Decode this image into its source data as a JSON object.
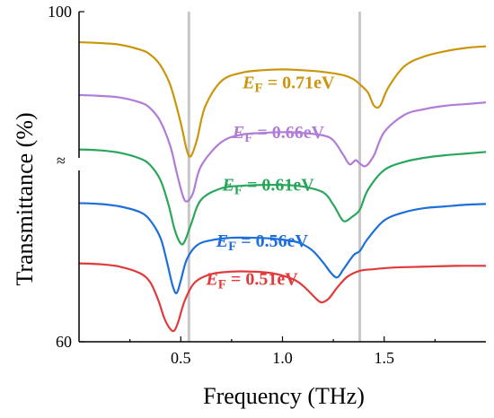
{
  "chart_data": {
    "type": "line",
    "xlabel": "Frequency (THz)",
    "ylabel": "Transmittance (%)",
    "xlim": [
      0.0,
      2.0
    ],
    "ylim": [
      60,
      100
    ],
    "x_ticks": [
      0.5,
      1.0,
      1.5
    ],
    "x_tick_labels": [
      "0.5",
      "1.0",
      "1.5"
    ],
    "y_tick_labels": [
      {
        "value": 100,
        "label": "100"
      },
      {
        "value": 60,
        "label": "60"
      }
    ],
    "axis_break_symbol": "≈",
    "reference_lines_x": [
      0.54,
      1.38
    ],
    "reference_line_color": "#c8c8c8",
    "series": [
      {
        "name": "E_F = 0.71eV",
        "label_parts": {
          "italic": "E",
          "sub": "F",
          "rest": " = 0.71eV"
        },
        "color": "#c9960c",
        "x": [
          0.0,
          0.1,
          0.2,
          0.3,
          0.35,
          0.4,
          0.45,
          0.5,
          0.53,
          0.55,
          0.58,
          0.62,
          0.7,
          0.8,
          0.9,
          1.0,
          1.1,
          1.2,
          1.3,
          1.35,
          1.38,
          1.42,
          1.45,
          1.48,
          1.52,
          1.6,
          1.7,
          1.8,
          1.9,
          2.0
        ],
        "y": [
          96.3,
          96.2,
          96.0,
          95.4,
          94.8,
          93.5,
          91.0,
          86.5,
          83.2,
          82.5,
          84.5,
          88.5,
          91.6,
          92.6,
          92.9,
          93.0,
          92.9,
          92.7,
          92.3,
          91.8,
          91.2,
          90.2,
          88.6,
          88.6,
          90.8,
          93.4,
          94.6,
          95.2,
          95.6,
          95.8
        ]
      },
      {
        "name": "E_F = 0.66eV",
        "label_parts": {
          "italic": "E",
          "sub": "F",
          "rest": " = 0.66eV"
        },
        "color": "#b07cd8",
        "x": [
          0.0,
          0.1,
          0.2,
          0.3,
          0.35,
          0.4,
          0.45,
          0.48,
          0.51,
          0.53,
          0.56,
          0.6,
          0.7,
          0.8,
          0.9,
          1.0,
          1.1,
          1.2,
          1.25,
          1.3,
          1.33,
          1.36,
          1.38,
          1.41,
          1.45,
          1.5,
          1.6,
          1.7,
          1.8,
          1.9,
          2.0
        ],
        "y": [
          89.9,
          89.8,
          89.6,
          89.0,
          88.3,
          86.7,
          83.6,
          80.5,
          77.7,
          77.0,
          78.0,
          81.3,
          84.2,
          85.1,
          85.3,
          85.4,
          85.3,
          85.0,
          84.4,
          82.6,
          81.5,
          82.0,
          81.6,
          81.3,
          82.6,
          85.4,
          87.5,
          88.2,
          88.6,
          88.8,
          89.0
        ]
      },
      {
        "name": "E_F = 0.61eV",
        "label_parts": {
          "italic": "E",
          "sub": "F",
          "rest": " = 0.61eV"
        },
        "color": "#2aa65c",
        "x": [
          0.0,
          0.1,
          0.2,
          0.3,
          0.35,
          0.4,
          0.44,
          0.47,
          0.5,
          0.52,
          0.55,
          0.6,
          0.7,
          0.8,
          0.9,
          1.0,
          1.1,
          1.2,
          1.25,
          1.29,
          1.31,
          1.34,
          1.38,
          1.42,
          1.5,
          1.6,
          1.7,
          1.8,
          1.9,
          2.0
        ],
        "y": [
          83.3,
          83.2,
          82.9,
          82.2,
          81.4,
          79.6,
          76.6,
          73.6,
          71.9,
          72.2,
          74.2,
          77.2,
          78.6,
          78.9,
          79.0,
          79.0,
          78.8,
          78.1,
          76.6,
          74.9,
          74.6,
          75.1,
          76.0,
          78.4,
          80.8,
          81.8,
          82.3,
          82.6,
          82.8,
          83.0
        ]
      },
      {
        "name": "E_F = 0.56eV",
        "label_parts": {
          "italic": "E",
          "sub": "F",
          "rest": " = 0.56eV"
        },
        "color": "#1e6fd9",
        "x": [
          0.0,
          0.1,
          0.2,
          0.3,
          0.35,
          0.4,
          0.43,
          0.46,
          0.48,
          0.5,
          0.53,
          0.58,
          0.65,
          0.75,
          0.85,
          0.95,
          1.05,
          1.1,
          1.15,
          1.2,
          1.24,
          1.27,
          1.3,
          1.35,
          1.38,
          1.42,
          1.5,
          1.6,
          1.7,
          1.8,
          1.9,
          2.0
        ],
        "y": [
          76.8,
          76.7,
          76.4,
          75.7,
          74.7,
          72.6,
          69.9,
          66.8,
          65.9,
          67.4,
          70.0,
          71.7,
          72.3,
          72.6,
          72.6,
          72.5,
          72.2,
          71.8,
          71.0,
          69.6,
          68.3,
          67.8,
          68.8,
          70.5,
          71.0,
          72.5,
          74.7,
          75.7,
          76.2,
          76.4,
          76.6,
          76.7
        ]
      },
      {
        "name": "E_F = 0.51eV",
        "label_parts": {
          "italic": "E",
          "sub": "F",
          "rest": " = 0.51eV"
        },
        "color": "#e03a3a",
        "x": [
          0.0,
          0.1,
          0.2,
          0.3,
          0.35,
          0.39,
          0.42,
          0.45,
          0.47,
          0.49,
          0.52,
          0.57,
          0.65,
          0.75,
          0.85,
          0.95,
          1.05,
          1.1,
          1.15,
          1.18,
          1.2,
          1.23,
          1.27,
          1.32,
          1.38,
          1.45,
          1.55,
          1.7,
          1.85,
          2.0
        ],
        "y": [
          69.5,
          69.4,
          69.1,
          68.3,
          67.2,
          65.0,
          62.8,
          61.5,
          61.4,
          62.6,
          65.0,
          67.2,
          68.2,
          68.5,
          68.5,
          68.3,
          67.6,
          66.8,
          65.6,
          64.9,
          64.8,
          65.3,
          66.6,
          67.9,
          68.6,
          68.8,
          69.0,
          69.1,
          69.2,
          69.2
        ]
      }
    ]
  }
}
